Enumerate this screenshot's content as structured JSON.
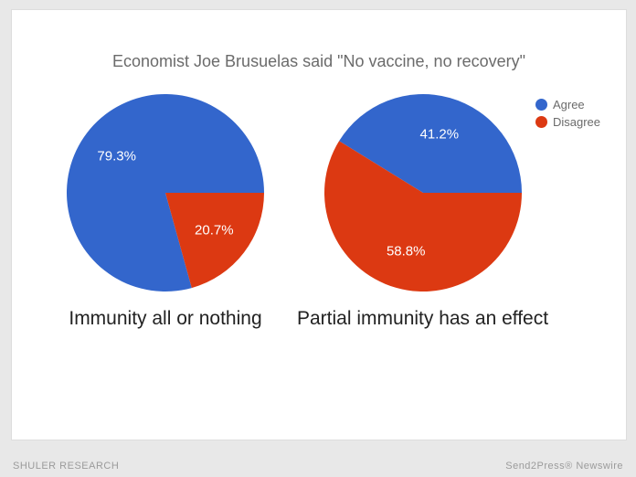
{
  "title": "Economist Joe Brusuelas said \"No vaccine, no recovery\"",
  "title_fontsize": 18,
  "title_color": "#6b6b6b",
  "background_color": "#ffffff",
  "outer_background": "#e8e8e8",
  "legend": {
    "items": [
      {
        "label": "Agree",
        "color": "#3366cc"
      },
      {
        "label": "Disagree",
        "color": "#dc3912"
      }
    ],
    "fontsize": 13,
    "text_color": "#6b6b6b"
  },
  "charts": [
    {
      "type": "pie",
      "caption": "Immunity all or nothing",
      "caption_fontsize": 21,
      "caption_color": "#222222",
      "start_angle_deg": 0,
      "label_color": "#ffffff",
      "label_fontsize": 15,
      "slices": [
        {
          "name": "Agree",
          "value": 79.3,
          "label": "79.3%",
          "color": "#3366cc"
        },
        {
          "name": "Disagree",
          "value": 20.7,
          "label": "20.7%",
          "color": "#dc3912"
        }
      ]
    },
    {
      "type": "pie",
      "caption": "Partial immunity has an effect",
      "caption_fontsize": 21,
      "caption_color": "#222222",
      "start_angle_deg": 0,
      "label_color": "#ffffff",
      "label_fontsize": 15,
      "slices": [
        {
          "name": "Agree",
          "value": 41.2,
          "label": "41.2%",
          "color": "#3366cc"
        },
        {
          "name": "Disagree",
          "value": 58.8,
          "label": "58.8%",
          "color": "#dc3912"
        }
      ]
    }
  ],
  "footer": {
    "left": "SHULER RESEARCH",
    "right": "Send2Press® Newswire",
    "color": "#9b9b9b",
    "fontsize": 11
  }
}
